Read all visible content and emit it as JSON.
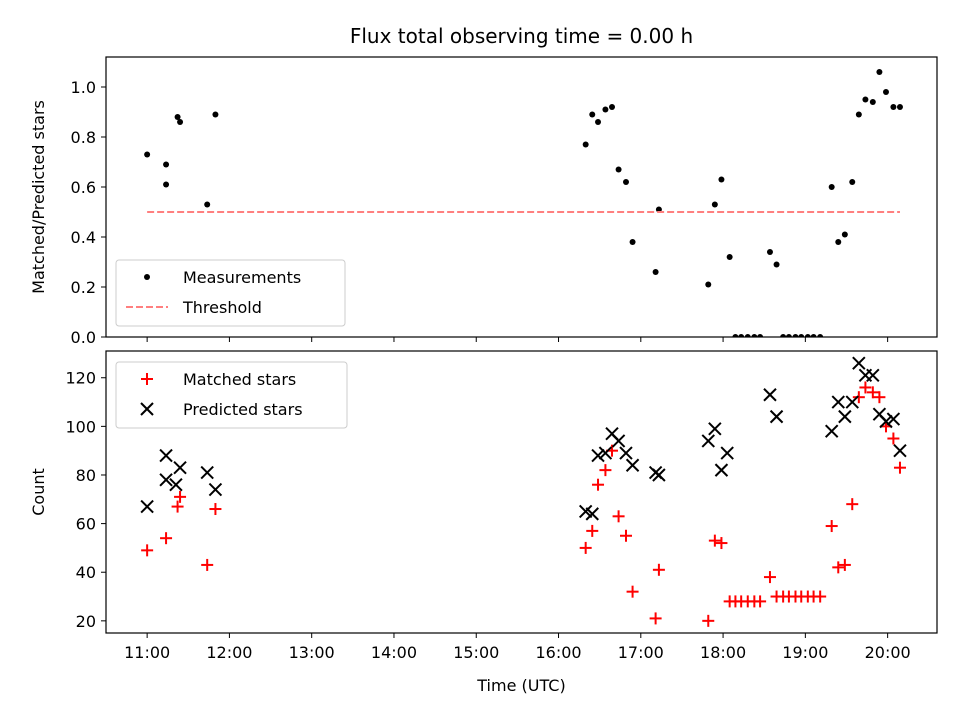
{
  "chart_data": [
    {
      "type": "scatter",
      "title": "Flux total observing time = 0.00 h",
      "ylabel": "Matched/Predicted stars",
      "ylim": [
        0,
        1.12
      ],
      "yticks": [
        "0.0",
        "0.2",
        "0.4",
        "0.6",
        "0.8",
        "1.0"
      ],
      "xlim": [
        10.5,
        20.6
      ],
      "grid": false,
      "legend_placement": "lower-left",
      "series": [
        {
          "name": "Measurements",
          "marker": "dot",
          "color": "#000000",
          "x": [
            11.0,
            11.23,
            11.23,
            11.37,
            11.4,
            11.73,
            11.83,
            16.33,
            16.41,
            16.48,
            16.57,
            16.65,
            16.73,
            16.82,
            16.9,
            17.18,
            17.22,
            17.82,
            17.9,
            17.98,
            18.08,
            18.15,
            18.22,
            18.3,
            18.38,
            18.45,
            18.57,
            18.65,
            18.73,
            18.8,
            18.88,
            18.95,
            19.03,
            19.1,
            19.18,
            19.32,
            19.4,
            19.48,
            19.57,
            19.65,
            19.73,
            19.82,
            19.9,
            19.98,
            20.07,
            20.15
          ],
          "y": [
            0.73,
            0.69,
            0.61,
            0.88,
            0.86,
            0.53,
            0.89,
            0.77,
            0.89,
            0.86,
            0.91,
            0.92,
            0.67,
            0.62,
            0.38,
            0.26,
            0.51,
            0.21,
            0.53,
            0.63,
            0.32,
            0.0,
            0.0,
            0.0,
            0.0,
            0.0,
            0.34,
            0.29,
            0.0,
            0.0,
            0.0,
            0.0,
            0.0,
            0.0,
            0.0,
            0.6,
            0.38,
            0.41,
            0.62,
            0.89,
            0.95,
            0.94,
            1.06,
            0.98,
            0.92,
            0.92
          ]
        },
        {
          "name": "Threshold",
          "marker": "dashed-line",
          "color": "#ff7f7f",
          "x": [
            11.0,
            20.15
          ],
          "y": [
            0.5,
            0.5
          ]
        }
      ]
    },
    {
      "type": "scatter",
      "xlabel": "Time (UTC)",
      "ylabel": "Count",
      "ylim": [
        15,
        131
      ],
      "yticks": [
        "20",
        "40",
        "60",
        "80",
        "100",
        "120"
      ],
      "xlim": [
        10.5,
        20.6
      ],
      "xticks": [
        {
          "v": 11,
          "label": "11:00"
        },
        {
          "v": 12,
          "label": "12:00"
        },
        {
          "v": 13,
          "label": "13:00"
        },
        {
          "v": 14,
          "label": "14:00"
        },
        {
          "v": 15,
          "label": "15:00"
        },
        {
          "v": 16,
          "label": "16:00"
        },
        {
          "v": 17,
          "label": "17:00"
        },
        {
          "v": 18,
          "label": "18:00"
        },
        {
          "v": 19,
          "label": "19:00"
        },
        {
          "v": 20,
          "label": "20:00"
        }
      ],
      "grid": false,
      "legend_placement": "upper-left",
      "series": [
        {
          "name": "Matched stars",
          "marker": "plus",
          "color": "#ff0000",
          "x": [
            11.0,
            11.23,
            11.37,
            11.4,
            11.73,
            11.83,
            16.33,
            16.41,
            16.48,
            16.57,
            16.65,
            16.73,
            16.82,
            16.9,
            17.18,
            17.22,
            17.82,
            17.9,
            17.98,
            18.08,
            18.15,
            18.22,
            18.3,
            18.38,
            18.45,
            18.57,
            18.65,
            18.73,
            18.8,
            18.88,
            18.95,
            19.03,
            19.1,
            19.18,
            19.32,
            19.4,
            19.48,
            19.57,
            19.65,
            19.73,
            19.82,
            19.9,
            19.98,
            20.07,
            20.15
          ],
          "y": [
            49,
            54,
            67,
            71,
            43,
            66,
            50,
            57,
            76,
            82,
            90,
            63,
            55,
            32,
            21,
            41,
            20,
            53,
            52,
            28,
            28,
            28,
            28,
            28,
            28,
            38,
            30,
            30,
            30,
            30,
            30,
            30,
            30,
            30,
            59,
            42,
            43,
            68,
            112,
            116,
            114,
            112,
            100,
            95,
            83
          ]
        },
        {
          "name": "Predicted stars",
          "marker": "x",
          "color": "#000000",
          "x": [
            11.0,
            11.23,
            11.23,
            11.35,
            11.4,
            11.73,
            11.83,
            16.33,
            16.41,
            16.48,
            16.57,
            16.65,
            16.73,
            16.82,
            16.9,
            17.18,
            17.22,
            17.82,
            17.9,
            17.98,
            18.05,
            18.57,
            18.65,
            19.32,
            19.4,
            19.48,
            19.57,
            19.65,
            19.73,
            19.82,
            19.9,
            19.98,
            20.07,
            20.15
          ],
          "y": [
            67,
            88,
            78,
            76,
            83,
            81,
            74,
            65,
            64,
            88,
            89,
            97,
            94,
            89,
            84,
            81,
            80,
            94,
            99,
            82,
            89,
            113,
            104,
            98,
            110,
            104,
            110,
            126,
            121,
            121,
            105,
            102,
            103,
            90
          ]
        }
      ]
    }
  ]
}
